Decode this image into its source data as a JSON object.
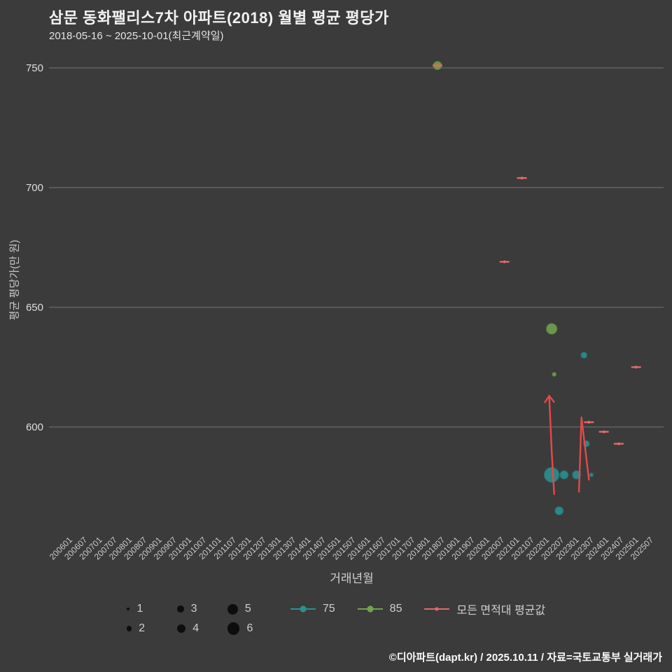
{
  "header": {
    "title": "삼문 동화팰리스7차 아파트(2018) 월별 평균 평당가",
    "subtitle": "2018-05-16 ~ 2025-10-01(최근계약일)"
  },
  "chart_data": {
    "type": "scatter",
    "title": "삼문 동화팰리스7차 아파트(2018) 월별 평균 평당가",
    "xlabel": "거래년월",
    "ylabel": "평균 평당가(만 원)",
    "grid": true,
    "y_ticks": [
      750,
      700,
      650,
      600
    ],
    "ylim": [
      555,
      760
    ],
    "x_ticks": [
      "200601",
      "200607",
      "200701",
      "200707",
      "200801",
      "200807",
      "200901",
      "200907",
      "201001",
      "201007",
      "201101",
      "201107",
      "201201",
      "201207",
      "201301",
      "201307",
      "201401",
      "201407",
      "201501",
      "201507",
      "201601",
      "201607",
      "201701",
      "201707",
      "201801",
      "201807",
      "201901",
      "201907",
      "202001",
      "202007",
      "202101",
      "202107",
      "202201",
      "202207",
      "202301",
      "202307",
      "202401",
      "202407",
      "202501",
      "202507"
    ],
    "series": [
      {
        "name": "75",
        "color": "#2f8f8f",
        "stroke": "#1f6b6b",
        "marker": "bubble",
        "points": [
          {
            "x": "202203",
            "y": 580,
            "n": 6
          },
          {
            "x": "202206",
            "y": 565,
            "n": 3
          },
          {
            "x": "202208",
            "y": 580,
            "n": 3
          },
          {
            "x": "202301",
            "y": 580,
            "n": 3
          },
          {
            "x": "202304",
            "y": 630,
            "n": 2
          },
          {
            "x": "202305",
            "y": 593,
            "n": 2
          },
          {
            "x": "202307",
            "y": 580,
            "n": 1
          }
        ]
      },
      {
        "name": "85",
        "color": "#74a24e",
        "stroke": "#55803a",
        "marker": "bubble",
        "points": [
          {
            "x": "201805",
            "y": 751,
            "n": 3
          },
          {
            "x": "202203",
            "y": 641,
            "n": 4
          },
          {
            "x": "202204",
            "y": 622,
            "n": 1
          }
        ]
      },
      {
        "name": "모든 면적대 평균값",
        "color": "#e06a6a",
        "stroke": "#e06a6a",
        "marker": "dash",
        "points": [
          {
            "x": "201805",
            "y": 751
          },
          {
            "x": "202008",
            "y": 669
          },
          {
            "x": "202103",
            "y": 704
          },
          {
            "x": "202306",
            "y": 602
          },
          {
            "x": "202312",
            "y": 598
          },
          {
            "x": "202406",
            "y": 593
          },
          {
            "x": "202501",
            "y": 625
          }
        ]
      }
    ],
    "annotations": {
      "color": "#e84848",
      "polylines": [
        {
          "name": "up-arrow",
          "arrow": true,
          "points": [
            [
              "202204",
              572
            ],
            [
              "202203",
              590
            ],
            [
              "202202",
              613
            ]
          ]
        },
        {
          "name": "zigzag",
          "points": [
            [
              "202302",
              573
            ],
            [
              "202303",
              604
            ],
            [
              "202306",
              578
            ]
          ]
        }
      ]
    }
  },
  "legend": {
    "sizes": [
      1,
      2,
      3,
      4,
      5,
      6
    ],
    "series": [
      {
        "label": "75",
        "color": "#2f8f8f",
        "dash": false
      },
      {
        "label": "85",
        "color": "#74a24e",
        "dash": false
      },
      {
        "label": "모든 면적대 평균값",
        "color": "#e06a6a",
        "dash": true
      }
    ]
  },
  "footer": {
    "credit": "©디아파트(dapt.kr) / 2025.10.11 / 자료=국토교통부 실거래가"
  }
}
